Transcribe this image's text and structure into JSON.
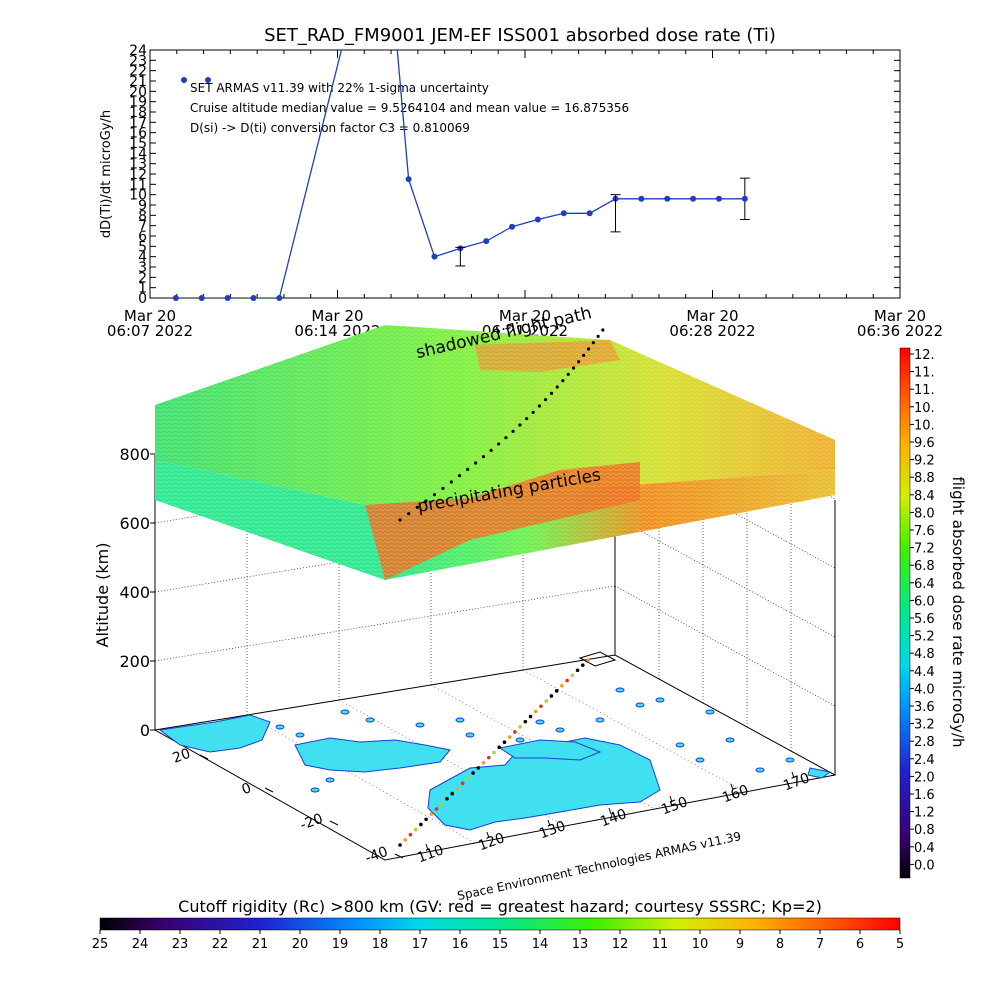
{
  "top_chart": {
    "title": "SET_RAD_FM9001  JEM-EF ISS001 absorbed dose rate (Ti)",
    "ylabel": "dD(Ti)/dt microGy/h",
    "annotations": [
      "SET ARMAS v11.39 with 22% 1-sigma uncertainty",
      "Cruise altitude median value = 9.5264104 and mean value = 16.875356",
      "D(si) -> D(ti) conversion factor C3 = 0.810069"
    ],
    "x_ticks": [
      {
        "date": "Mar 20",
        "time": "06:07 2022"
      },
      {
        "date": "Mar 20",
        "time": "06:14 2022"
      },
      {
        "date": "Mar 20",
        "time": "06:21 2022"
      },
      {
        "date": "Mar 20",
        "time": "06:28 2022"
      },
      {
        "date": "Mar 20",
        "time": "06:36 2022"
      }
    ],
    "y_ticks": [
      "0",
      "1",
      "2",
      "3",
      "4",
      "5",
      "6",
      "7",
      "8",
      "9",
      "10",
      "11",
      "12",
      "13",
      "14",
      "15",
      "16",
      "17",
      "18",
      "19",
      "20",
      "21",
      "22",
      "23",
      "24"
    ]
  },
  "chart_data": [
    {
      "type": "line",
      "title": "SET_RAD_FM9001  JEM-EF ISS001 absorbed dose rate (Ti)",
      "ylabel": "dD(Ti)/dt microGy/h",
      "xlim": [
        "2022-03-20 06:07",
        "2022-03-20 06:36"
      ],
      "ylim": [
        0,
        24
      ],
      "x": [
        "06:08",
        "06:09",
        "06:10",
        "06:11",
        "06:12",
        "06:16",
        "06:17",
        "06:18",
        "06:19",
        "06:20",
        "06:21",
        "06:22",
        "06:23",
        "06:24",
        "06:25",
        "06:26",
        "06:27",
        "06:28",
        "06:29"
      ],
      "y": [
        0,
        0,
        0,
        0,
        0,
        40,
        11.5,
        4.0,
        4.8,
        5.5,
        6.9,
        7.6,
        8.2,
        8.2,
        9.6,
        9.6,
        9.6,
        9.6,
        9.6
      ],
      "error_bars": [
        {
          "x": "06:19",
          "low": 3.1,
          "high": 4.9
        },
        {
          "x": "06:25",
          "low": 6.4,
          "high": 10.0
        },
        {
          "x": "06:30",
          "low": 7.6,
          "high": 11.6
        }
      ],
      "grid": false,
      "legend": "top-left"
    },
    {
      "type": "heatmap",
      "description_axis": "3d",
      "zlabel": "Altitude (km)",
      "z_ticks": [
        "0",
        "200",
        "400",
        "600",
        "800"
      ],
      "lat_ticks": [
        "20",
        "0",
        "-20",
        "-40"
      ],
      "lon_ticks": [
        "110",
        "120",
        "130",
        "140",
        "150",
        "160",
        "170"
      ],
      "labels": [
        "shadowed flight path",
        "precipitating particles"
      ]
    }
  ],
  "plot3d": {
    "zlabel": "Altitude (km)",
    "z_ticks": [
      "0",
      "200",
      "400",
      "600",
      "800"
    ],
    "lat_ticks": [
      "20",
      "0",
      "-20",
      "-40"
    ],
    "lon_ticks": [
      "110",
      "120",
      "130",
      "140",
      "150",
      "160",
      "170"
    ],
    "label_shadow": "shadowed flight path",
    "label_precip": "precipitating particles",
    "credit": "Space Environment Technologies ARMAS v11.39"
  },
  "right_colorbar": {
    "label": "flight absorbed dose rate microGy/h",
    "ticks": [
      "12.",
      "11.",
      "11.",
      "10.",
      "10.",
      "9.6",
      "9.2",
      "8.8",
      "8.4",
      "8.0",
      "7.6",
      "7.2",
      "6.8",
      "6.4",
      "6.0",
      "5.6",
      "5.2",
      "4.8",
      "4.4",
      "4.0",
      "3.6",
      "3.2",
      "2.8",
      "2.4",
      "2.0",
      "1.6",
      "1.2",
      "0.8",
      "0.4",
      "0.0"
    ]
  },
  "bottom_colorbar": {
    "title": "Cutoff rigidity (Rc) >800 km (GV: red = greatest hazard; courtesy SSSRC; Kp=2)",
    "ticks": [
      "25",
      "24",
      "23",
      "22",
      "21",
      "20",
      "19",
      "18",
      "17",
      "16",
      "15",
      "14",
      "13",
      "12",
      "11",
      "10",
      "9",
      "8",
      "7",
      "6",
      "5"
    ]
  },
  "colors": {
    "line": "#1f3fbf",
    "axis": "#000000",
    "land": "#40e0f0",
    "coast": "#1a3fd0"
  }
}
